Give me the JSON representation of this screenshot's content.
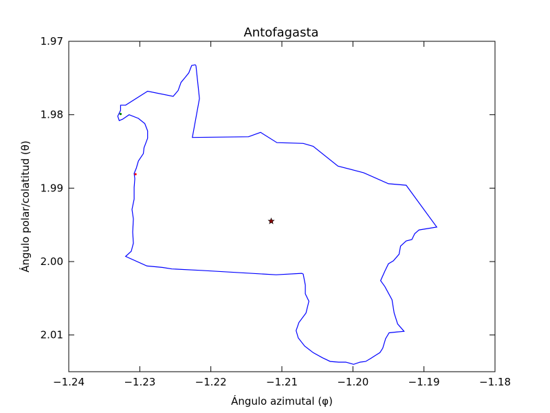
{
  "chart_data": {
    "type": "line",
    "title": "Antofagasta",
    "xlabel": "Ángulo azimutal (φ)",
    "ylabel": "Ángulo polar/colatitud (θ)",
    "xlim": [
      -1.24,
      -1.18
    ],
    "ylim": [
      1.97,
      2.015
    ],
    "y_inverted": true,
    "grid": false,
    "x_ticks": [
      -1.24,
      -1.23,
      -1.22,
      -1.21,
      -1.2,
      -1.19,
      -1.18
    ],
    "x_tick_labels": [
      "−1.24",
      "−1.23",
      "−1.22",
      "−1.21",
      "−1.20",
      "−1.19",
      "−1.18"
    ],
    "y_ticks": [
      1.97,
      1.98,
      1.99,
      2.0,
      2.01
    ],
    "y_tick_labels": [
      "1.97",
      "1.98",
      "1.99",
      "2.00",
      "2.01"
    ],
    "colors": {
      "boundary": "#0000ff",
      "centroid": "#8b0000",
      "start_marker": "#008000",
      "end_marker": "#ff0000"
    },
    "series": [
      {
        "values": [
          [
            -1.2221,
            1.9733
          ],
          [
            -1.2216,
            1.9778
          ],
          [
            -1.2226,
            1.9831
          ],
          [
            -1.2147,
            1.983
          ],
          [
            -1.213,
            1.9824
          ],
          [
            -1.2107,
            1.9838
          ],
          [
            -1.207,
            1.9839
          ],
          [
            -1.2056,
            1.9843
          ],
          [
            -1.2021,
            1.987
          ],
          [
            -1.1985,
            1.9879
          ],
          [
            -1.195,
            1.9894
          ],
          [
            -1.1925,
            1.9896
          ],
          [
            -1.1882,
            1.9953
          ],
          [
            -1.1907,
            1.9957
          ],
          [
            -1.1913,
            1.9962
          ],
          [
            -1.1917,
            1.997
          ],
          [
            -1.1925,
            1.9972
          ],
          [
            -1.1933,
            1.9979
          ],
          [
            -1.1935,
            1.999
          ],
          [
            -1.1943,
            1.9999
          ],
          [
            -1.195,
            2.0003
          ],
          [
            -1.1955,
            2.0013
          ],
          [
            -1.1961,
            2.0026
          ],
          [
            -1.1955,
            2.0034
          ],
          [
            -1.1945,
            2.0052
          ],
          [
            -1.1942,
            2.007
          ],
          [
            -1.1937,
            2.0085
          ],
          [
            -1.1928,
            2.0095
          ],
          [
            -1.1939,
            2.0096
          ],
          [
            -1.1949,
            2.0097
          ],
          [
            -1.1954,
            2.0105
          ],
          [
            -1.1958,
            2.0118
          ],
          [
            -1.1962,
            2.0124
          ],
          [
            -1.1967,
            2.0127
          ],
          [
            -1.1975,
            2.0132
          ],
          [
            -1.1982,
            2.0136
          ],
          [
            -1.199,
            2.0137
          ],
          [
            -1.1999,
            2.014
          ],
          [
            -1.201,
            2.0137
          ],
          [
            -1.202,
            2.0137
          ],
          [
            -1.2032,
            2.0136
          ],
          [
            -1.2043,
            2.0131
          ],
          [
            -1.2056,
            2.0124
          ],
          [
            -1.2068,
            2.0115
          ],
          [
            -1.2077,
            2.0104
          ],
          [
            -1.208,
            2.0094
          ],
          [
            -1.2076,
            2.0083
          ],
          [
            -1.2066,
            2.007
          ],
          [
            -1.2062,
            2.0054
          ],
          [
            -1.2067,
            2.0044
          ],
          [
            -1.2067,
            2.0032
          ],
          [
            -1.207,
            2.0017
          ],
          [
            -1.2072,
            2.0016
          ],
          [
            -1.2108,
            2.0018
          ],
          [
            -1.2214,
            2.0012
          ],
          [
            -1.2255,
            2.001
          ],
          [
            -1.2268,
            2.0008
          ],
          [
            -1.229,
            2.0006
          ],
          [
            -1.232,
            1.9993
          ],
          [
            -1.2312,
            1.9986
          ],
          [
            -1.2309,
            1.9975
          ],
          [
            -1.231,
            1.996
          ],
          [
            -1.2309,
            1.9942
          ],
          [
            -1.2311,
            1.9929
          ],
          [
            -1.2308,
            1.9915
          ],
          [
            -1.2308,
            1.9899
          ],
          [
            -1.2307,
            1.9887
          ],
          [
            -1.2308,
            1.988
          ],
          [
            -1.2305,
            1.9873
          ],
          [
            -1.2302,
            1.9863
          ],
          [
            -1.2295,
            1.9853
          ],
          [
            -1.2294,
            1.9845
          ],
          [
            -1.2289,
            1.9832
          ],
          [
            -1.2289,
            1.9822
          ],
          [
            -1.2293,
            1.9812
          ],
          [
            -1.2302,
            1.9805
          ],
          [
            -1.2315,
            1.98
          ],
          [
            -1.2324,
            1.9806
          ],
          [
            -1.2329,
            1.9808
          ],
          [
            -1.2331,
            1.9802
          ],
          [
            -1.2327,
            1.9794
          ],
          [
            -1.2327,
            1.9787
          ],
          [
            -1.232,
            1.9787
          ],
          [
            -1.2289,
            1.9768
          ],
          [
            -1.2253,
            1.9775
          ],
          [
            -1.2246,
            1.9767
          ],
          [
            -1.2242,
            1.9756
          ],
          [
            -1.2236,
            1.9749
          ],
          [
            -1.2231,
            1.9743
          ],
          [
            -1.2227,
            1.9733
          ],
          [
            -1.2222,
            1.9732
          ],
          [
            -1.2221,
            1.9733
          ]
        ]
      }
    ],
    "markers": [
      {
        "type": "star",
        "x": -1.2115,
        "y": 1.9945
      },
      {
        "type": "dot",
        "x": -1.2327,
        "y": 1.9799
      },
      {
        "type": "dot",
        "x": -1.2306,
        "y": 1.9881
      }
    ]
  }
}
